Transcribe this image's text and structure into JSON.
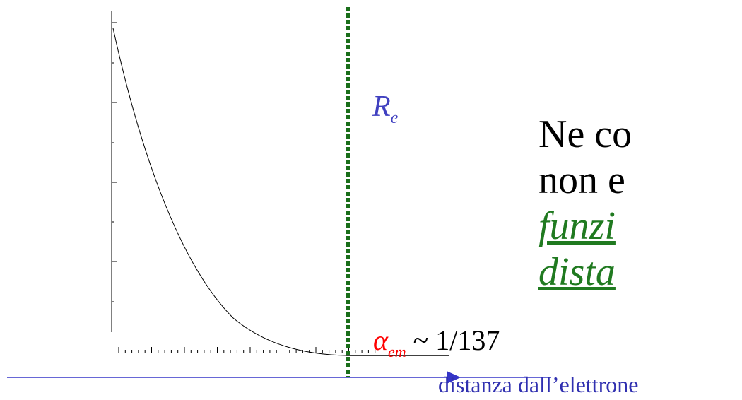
{
  "labels": {
    "radius": "R",
    "radius_sub": "e",
    "alpha_symbol": "α",
    "alpha_sub": "em",
    "alpha_value": " ~ 1/137",
    "x_axis": "distanza dall’elettrone"
  },
  "text_block": {
    "line1": "Ne co",
    "line2": "non e",
    "line3": "funzi",
    "line4": "dista"
  },
  "colors": {
    "curve": "#000000",
    "cutoff_line": "#1a6e1a",
    "axis": "#3535c8",
    "radius_label": "#4040c0",
    "alpha_symbol": "#ff0000",
    "emphasis_text": "#207a20"
  }
}
